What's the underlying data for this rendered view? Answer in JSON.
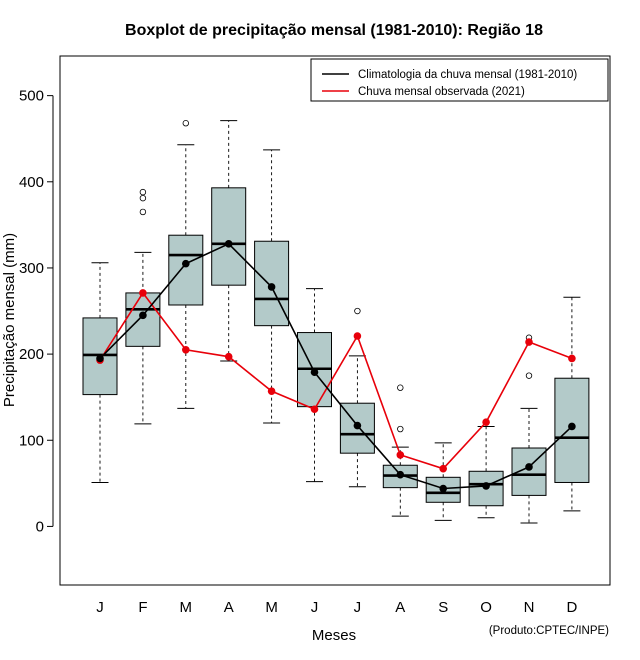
{
  "chart_data": {
    "type": "boxplot",
    "title": "Boxplot de precipitação mensal (1981-2010): Região 18",
    "xlabel": "Meses",
    "ylabel": "Precipitação mensal (mm)",
    "ylim": [
      -68,
      546
    ],
    "yticks": [
      0,
      100,
      200,
      300,
      400,
      500
    ],
    "categories": [
      "J",
      "F",
      "M",
      "A",
      "M",
      "J",
      "J",
      "A",
      "S",
      "O",
      "N",
      "D"
    ],
    "box_color": "#b3cac9",
    "boxes": [
      {
        "whisker_low": 51,
        "q1": 153,
        "median": 199,
        "q3": 242,
        "whisker_high": 306,
        "outliers": []
      },
      {
        "whisker_low": 119,
        "q1": 209,
        "median": 252,
        "q3": 271,
        "whisker_high": 318,
        "outliers": [
          365,
          381,
          388
        ]
      },
      {
        "whisker_low": 137,
        "q1": 257,
        "median": 315,
        "q3": 338,
        "whisker_high": 443,
        "outliers": [
          468
        ]
      },
      {
        "whisker_low": 192,
        "q1": 280,
        "median": 328,
        "q3": 393,
        "whisker_high": 471,
        "outliers": []
      },
      {
        "whisker_low": 120,
        "q1": 233,
        "median": 264,
        "q3": 331,
        "whisker_high": 437,
        "outliers": []
      },
      {
        "whisker_low": 52,
        "q1": 139,
        "median": 183,
        "q3": 225,
        "whisker_high": 276,
        "outliers": []
      },
      {
        "whisker_low": 46,
        "q1": 85,
        "median": 107,
        "q3": 143,
        "whisker_high": 198,
        "outliers": [
          250
        ]
      },
      {
        "whisker_low": 12,
        "q1": 45,
        "median": 59,
        "q3": 71,
        "whisker_high": 92,
        "outliers": [
          113,
          161
        ]
      },
      {
        "whisker_low": 7,
        "q1": 28,
        "median": 39,
        "q3": 57,
        "whisker_high": 97,
        "outliers": []
      },
      {
        "whisker_low": 10,
        "q1": 24,
        "median": 49,
        "q3": 64,
        "whisker_high": 116,
        "outliers": []
      },
      {
        "whisker_low": 4,
        "q1": 36,
        "median": 60,
        "q3": 91,
        "whisker_high": 137,
        "outliers": [
          175,
          219
        ]
      },
      {
        "whisker_low": 18,
        "q1": 51,
        "median": 103,
        "q3": 172,
        "whisker_high": 266,
        "outliers": []
      }
    ],
    "series": [
      {
        "name": "Climatologia da chuva mensal (1981-2010)",
        "color": "#000000",
        "values": [
          195,
          245,
          305,
          328,
          278,
          179,
          117,
          60,
          44,
          47,
          69,
          116
        ]
      },
      {
        "name": "Chuva mensal observada (2021)",
        "color": "#e8000a",
        "values": [
          193,
          271,
          205,
          197,
          157,
          136,
          221,
          83,
          67,
          121,
          214,
          195
        ]
      }
    ],
    "legend_position": "top-right",
    "credit": "(Produto:CPTEC/INPE)"
  }
}
